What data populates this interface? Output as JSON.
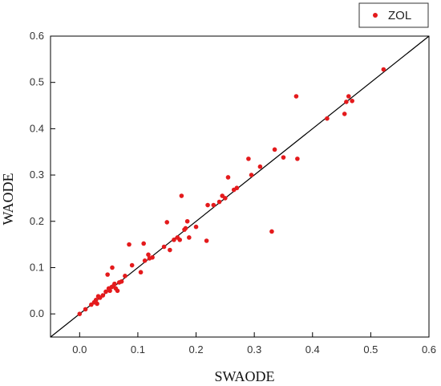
{
  "chart_data": {
    "type": "scatter",
    "xlabel": "SWAODE",
    "ylabel": "WAODE",
    "xlim": [
      -0.05,
      0.6
    ],
    "ylim": [
      -0.05,
      0.6
    ],
    "x_ticks": [
      "0.0",
      "0.1",
      "0.2",
      "0.3",
      "0.4",
      "0.5",
      "0.6"
    ],
    "y_ticks": [
      "0.0",
      "0.1",
      "0.2",
      "0.3",
      "0.4",
      "0.5",
      "0.6"
    ],
    "grid": false,
    "legend_position": "top-right",
    "reference_line": "y = x",
    "series": [
      {
        "name": "ZOL",
        "color": "#e41a1c",
        "points": [
          [
            0.0,
            0.0
          ],
          [
            0.01,
            0.01
          ],
          [
            0.02,
            0.02
          ],
          [
            0.025,
            0.025
          ],
          [
            0.028,
            0.03
          ],
          [
            0.03,
            0.022
          ],
          [
            0.032,
            0.038
          ],
          [
            0.035,
            0.035
          ],
          [
            0.04,
            0.04
          ],
          [
            0.045,
            0.048
          ],
          [
            0.048,
            0.085
          ],
          [
            0.05,
            0.055
          ],
          [
            0.052,
            0.05
          ],
          [
            0.055,
            0.058
          ],
          [
            0.056,
            0.1
          ],
          [
            0.058,
            0.06
          ],
          [
            0.06,
            0.065
          ],
          [
            0.062,
            0.055
          ],
          [
            0.065,
            0.05
          ],
          [
            0.068,
            0.068
          ],
          [
            0.072,
            0.07
          ],
          [
            0.078,
            0.082
          ],
          [
            0.085,
            0.15
          ],
          [
            0.09,
            0.105
          ],
          [
            0.105,
            0.09
          ],
          [
            0.11,
            0.152
          ],
          [
            0.112,
            0.115
          ],
          [
            0.118,
            0.128
          ],
          [
            0.12,
            0.12
          ],
          [
            0.125,
            0.122
          ],
          [
            0.145,
            0.145
          ],
          [
            0.15,
            0.198
          ],
          [
            0.155,
            0.138
          ],
          [
            0.162,
            0.16
          ],
          [
            0.168,
            0.165
          ],
          [
            0.172,
            0.16
          ],
          [
            0.175,
            0.255
          ],
          [
            0.18,
            0.182
          ],
          [
            0.182,
            0.185
          ],
          [
            0.185,
            0.2
          ],
          [
            0.188,
            0.165
          ],
          [
            0.2,
            0.188
          ],
          [
            0.218,
            0.158
          ],
          [
            0.22,
            0.235
          ],
          [
            0.23,
            0.235
          ],
          [
            0.24,
            0.242
          ],
          [
            0.245,
            0.255
          ],
          [
            0.25,
            0.25
          ],
          [
            0.255,
            0.295
          ],
          [
            0.265,
            0.268
          ],
          [
            0.27,
            0.272
          ],
          [
            0.29,
            0.335
          ],
          [
            0.295,
            0.3
          ],
          [
            0.31,
            0.318
          ],
          [
            0.33,
            0.178
          ],
          [
            0.335,
            0.355
          ],
          [
            0.35,
            0.338
          ],
          [
            0.372,
            0.47
          ],
          [
            0.374,
            0.335
          ],
          [
            0.425,
            0.422
          ],
          [
            0.455,
            0.432
          ],
          [
            0.458,
            0.458
          ],
          [
            0.462,
            0.47
          ],
          [
            0.468,
            0.46
          ],
          [
            0.522,
            0.528
          ]
        ]
      }
    ]
  }
}
